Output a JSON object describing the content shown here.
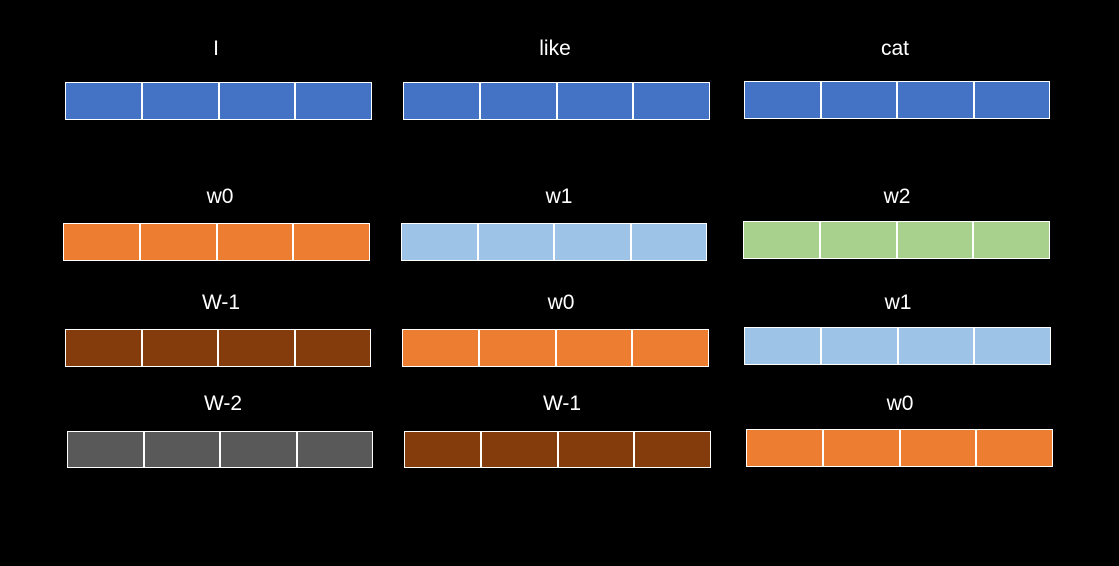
{
  "colors": {
    "blue": "#4472c4",
    "orange": "#ed7d31",
    "lightblue": "#9dc3e6",
    "green": "#a9d18e",
    "brown": "#843c0c",
    "gray": "#595959"
  },
  "blocks": [
    {
      "label": "I",
      "color": "blue",
      "cells": 4
    },
    {
      "label": "like",
      "color": "blue",
      "cells": 4
    },
    {
      "label": "cat",
      "color": "blue",
      "cells": 4
    },
    {
      "label": "w0",
      "color": "orange",
      "cells": 4
    },
    {
      "label": "w1",
      "color": "lightblue",
      "cells": 4
    },
    {
      "label": "w2",
      "color": "green",
      "cells": 4
    },
    {
      "label": "W-1",
      "color": "brown",
      "cells": 4
    },
    {
      "label": "w0",
      "color": "orange",
      "cells": 4
    },
    {
      "label": "w1",
      "color": "lightblue",
      "cells": 4
    },
    {
      "label": "W-2",
      "color": "gray",
      "cells": 4
    },
    {
      "label": "W-1",
      "color": "brown",
      "cells": 4
    },
    {
      "label": "w0",
      "color": "orange",
      "cells": 4
    }
  ]
}
